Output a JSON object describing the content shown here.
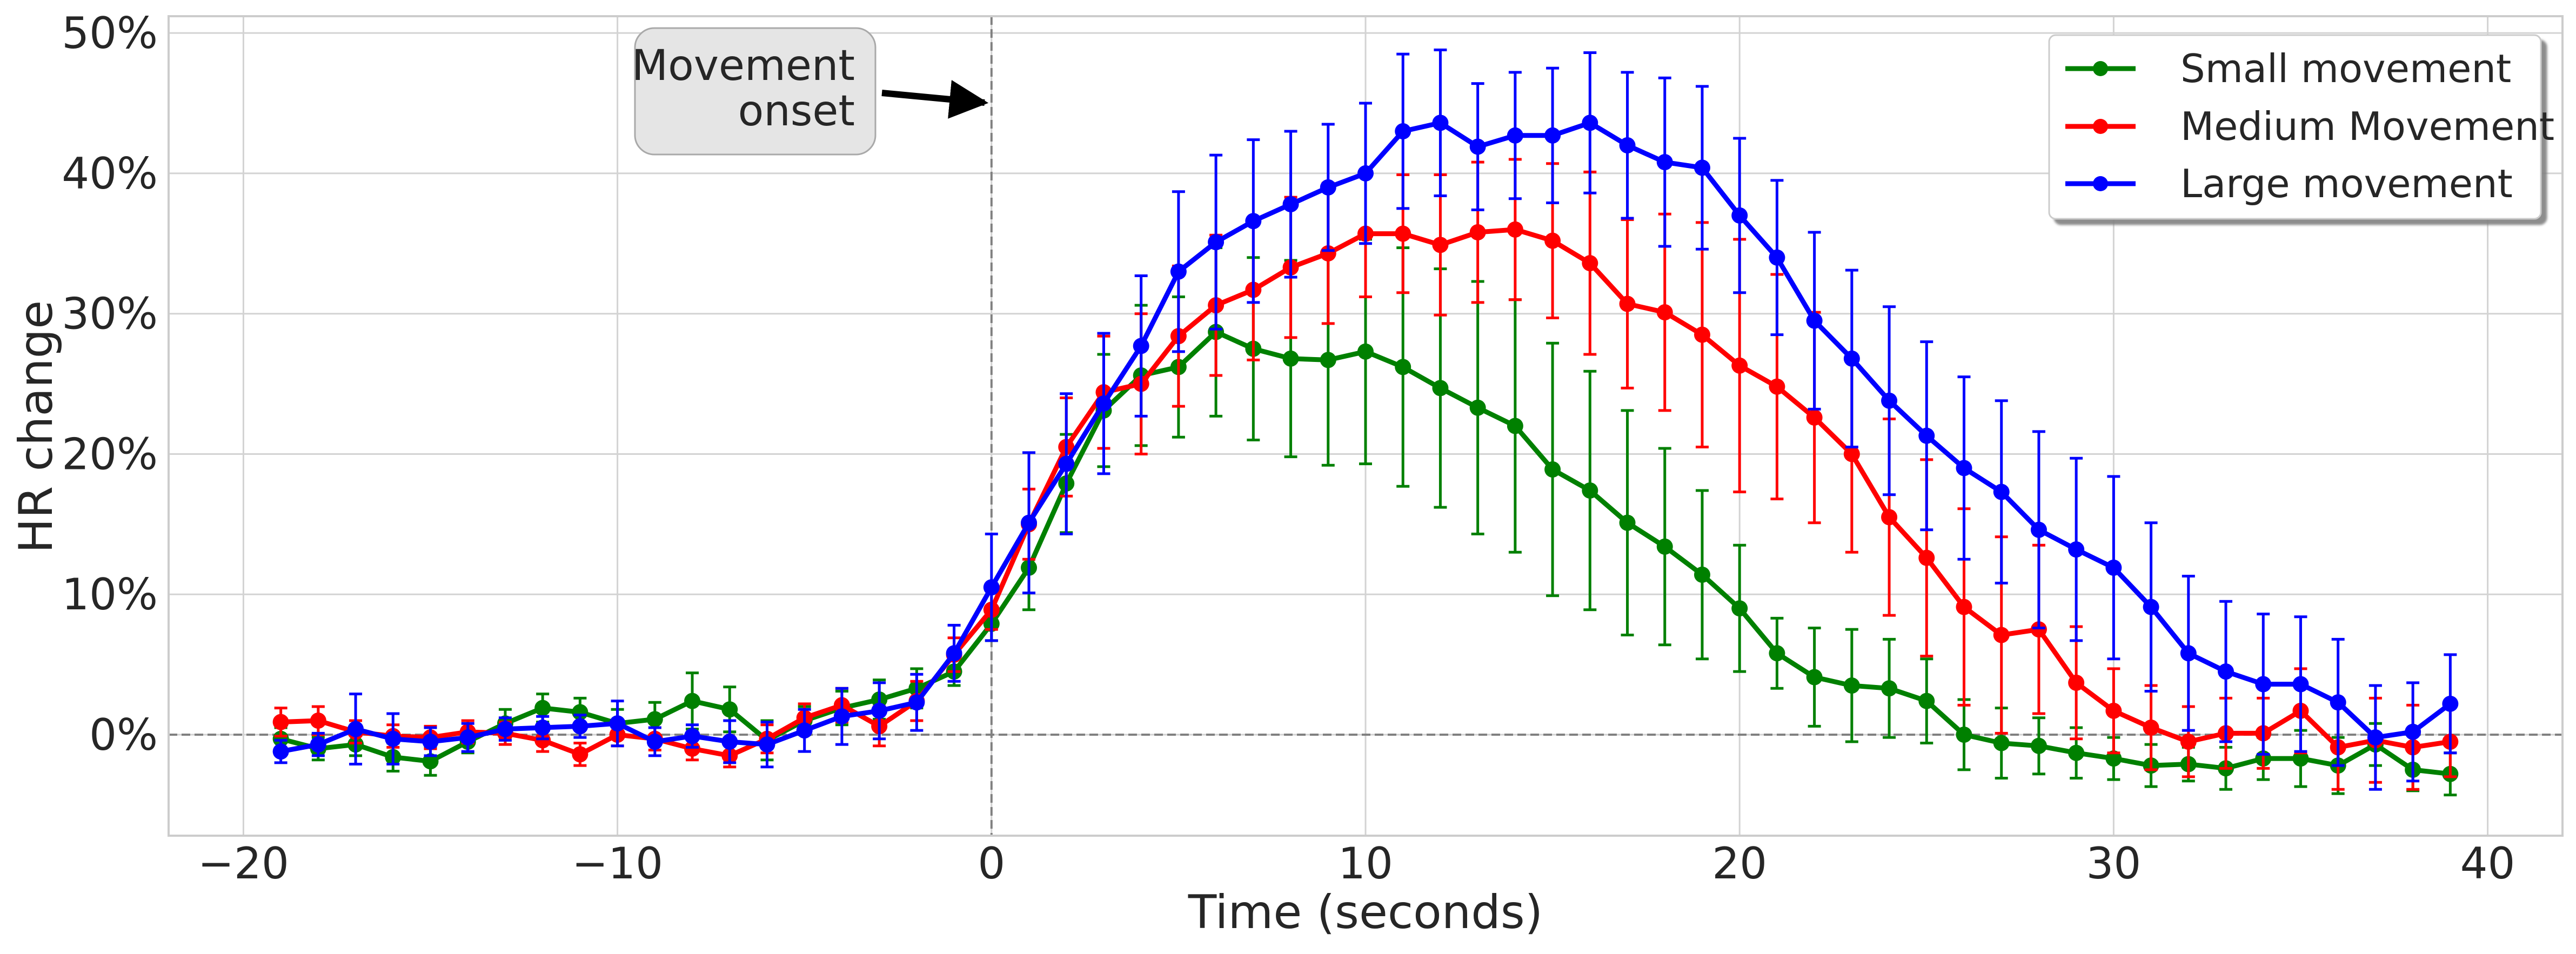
{
  "chart_data": {
    "type": "line",
    "title": "",
    "xlabel": "Time (seconds)",
    "ylabel": "HR change",
    "xlim": [
      -22,
      42
    ],
    "ylim": [
      -0.072,
      0.512
    ],
    "x_ticks": [
      -20,
      -10,
      0,
      10,
      20,
      30,
      40
    ],
    "x_tick_labels": [
      "−20",
      "−10",
      "0",
      "10",
      "20",
      "30",
      "40"
    ],
    "y_ticks": [
      0,
      0.1,
      0.2,
      0.3,
      0.4,
      0.5
    ],
    "y_tick_labels": [
      "0%",
      "10%",
      "20%",
      "30%",
      "40%",
      "50%"
    ],
    "grid": true,
    "legend_position": "top-right",
    "reference_lines": {
      "horizontal_y": 0,
      "vertical_x": 0,
      "style": "dashed",
      "color": "#808080"
    },
    "annotation": {
      "text_line1": "Movement",
      "text_line2": "onset",
      "points_to": [
        0,
        0.45
      ]
    },
    "x": [
      -19,
      -18,
      -17,
      -16,
      -15,
      -14,
      -13,
      -12,
      -11,
      -10,
      -9,
      -8,
      -7,
      -6,
      -5,
      -4,
      -3,
      -2,
      -1,
      0,
      1,
      2,
      3,
      4,
      5,
      6,
      7,
      8,
      9,
      10,
      11,
      12,
      13,
      14,
      15,
      16,
      17,
      18,
      19,
      20,
      21,
      22,
      23,
      24,
      25,
      26,
      27,
      28,
      29,
      30,
      31,
      32,
      33,
      34,
      35,
      36,
      37,
      38,
      39
    ],
    "series": [
      {
        "name": "Small movement",
        "color": "#008000",
        "values": [
          -0.003,
          -0.01,
          -0.007,
          -0.016,
          -0.019,
          -0.005,
          0.008,
          0.019,
          0.016,
          0.008,
          0.011,
          0.024,
          0.018,
          -0.004,
          0.01,
          0.019,
          0.025,
          0.033,
          0.045,
          0.079,
          0.119,
          0.179,
          0.231,
          0.256,
          0.262,
          0.287,
          0.275,
          0.268,
          0.267,
          0.273,
          0.262,
          0.247,
          0.233,
          0.22,
          0.189,
          0.174,
          0.151,
          0.134,
          0.114,
          0.09,
          0.058,
          0.041,
          0.035,
          0.033,
          0.024,
          0.0,
          -0.006,
          -0.008,
          -0.013,
          -0.017,
          -0.022,
          -0.021,
          -0.024,
          -0.017,
          -0.017,
          -0.022,
          -0.007,
          -0.025,
          -0.028
        ],
        "errors": [
          0.008,
          0.008,
          0.008,
          0.01,
          0.01,
          0.008,
          0.01,
          0.01,
          0.01,
          0.01,
          0.012,
          0.02,
          0.016,
          0.014,
          0.01,
          0.012,
          0.014,
          0.014,
          0.01,
          0.012,
          0.03,
          0.035,
          0.04,
          0.05,
          0.05,
          0.06,
          0.065,
          0.07,
          0.075,
          0.08,
          0.085,
          0.085,
          0.09,
          0.09,
          0.09,
          0.085,
          0.08,
          0.07,
          0.06,
          0.045,
          0.025,
          0.035,
          0.04,
          0.035,
          0.03,
          0.025,
          0.025,
          0.02,
          0.018,
          0.015,
          0.015,
          0.012,
          0.015,
          0.015,
          0.02,
          0.02,
          0.015,
          0.015,
          0.015
        ]
      },
      {
        "name": "Medium Movement",
        "color": "#ff0000",
        "values": [
          0.009,
          0.01,
          0.002,
          -0.001,
          -0.002,
          0.002,
          0.001,
          -0.004,
          -0.014,
          0.0,
          -0.003,
          -0.01,
          -0.015,
          -0.003,
          0.012,
          0.021,
          0.006,
          0.024,
          0.057,
          0.089,
          0.15,
          0.205,
          0.244,
          0.25,
          0.284,
          0.306,
          0.317,
          0.333,
          0.343,
          0.357,
          0.357,
          0.349,
          0.358,
          0.36,
          0.352,
          0.336,
          0.307,
          0.301,
          0.285,
          0.263,
          0.248,
          0.226,
          0.2,
          0.155,
          0.126,
          0.091,
          0.071,
          0.075,
          0.037,
          0.017,
          0.005,
          -0.005,
          0.001,
          0.001,
          0.017,
          -0.009,
          -0.004,
          -0.009,
          -0.005
        ],
        "errors": [
          0.01,
          0.01,
          0.008,
          0.008,
          0.008,
          0.008,
          0.008,
          0.008,
          0.008,
          0.008,
          0.008,
          0.008,
          0.008,
          0.01,
          0.01,
          0.012,
          0.014,
          0.014,
          0.012,
          0.014,
          0.025,
          0.035,
          0.04,
          0.05,
          0.05,
          0.05,
          0.05,
          0.05,
          0.05,
          0.045,
          0.042,
          0.05,
          0.05,
          0.05,
          0.055,
          0.065,
          0.06,
          0.07,
          0.08,
          0.09,
          0.08,
          0.075,
          0.07,
          0.07,
          0.07,
          0.07,
          0.07,
          0.06,
          0.04,
          0.03,
          0.03,
          0.025,
          0.025,
          0.025,
          0.03,
          0.03,
          0.03,
          0.03,
          0.025
        ]
      },
      {
        "name": "Large movement",
        "color": "#0000ff",
        "values": [
          -0.012,
          -0.007,
          0.004,
          -0.003,
          -0.005,
          -0.002,
          0.004,
          0.005,
          0.006,
          0.008,
          -0.005,
          -0.001,
          -0.005,
          -0.007,
          0.003,
          0.013,
          0.017,
          0.023,
          0.058,
          0.105,
          0.151,
          0.193,
          0.236,
          0.277,
          0.33,
          0.351,
          0.366,
          0.378,
          0.39,
          0.4,
          0.43,
          0.436,
          0.419,
          0.427,
          0.427,
          0.436,
          0.42,
          0.408,
          0.404,
          0.37,
          0.34,
          0.295,
          0.268,
          0.238,
          0.213,
          0.19,
          0.173,
          0.146,
          0.132,
          0.119,
          0.091,
          0.058,
          0.045,
          0.036,
          0.036,
          0.023,
          -0.002,
          0.002,
          0.022
        ],
        "errors": [
          0.008,
          0.008,
          0.025,
          0.018,
          0.01,
          0.01,
          0.008,
          0.008,
          0.008,
          0.016,
          0.01,
          0.008,
          0.015,
          0.016,
          0.015,
          0.02,
          0.02,
          0.02,
          0.02,
          0.038,
          0.05,
          0.05,
          0.05,
          0.05,
          0.057,
          0.062,
          0.058,
          0.052,
          0.045,
          0.05,
          0.055,
          0.052,
          0.045,
          0.045,
          0.048,
          0.05,
          0.052,
          0.06,
          0.058,
          0.055,
          0.055,
          0.063,
          0.063,
          0.067,
          0.067,
          0.065,
          0.065,
          0.07,
          0.065,
          0.065,
          0.06,
          0.055,
          0.05,
          0.05,
          0.048,
          0.045,
          0.037,
          0.035,
          0.035
        ]
      }
    ]
  }
}
